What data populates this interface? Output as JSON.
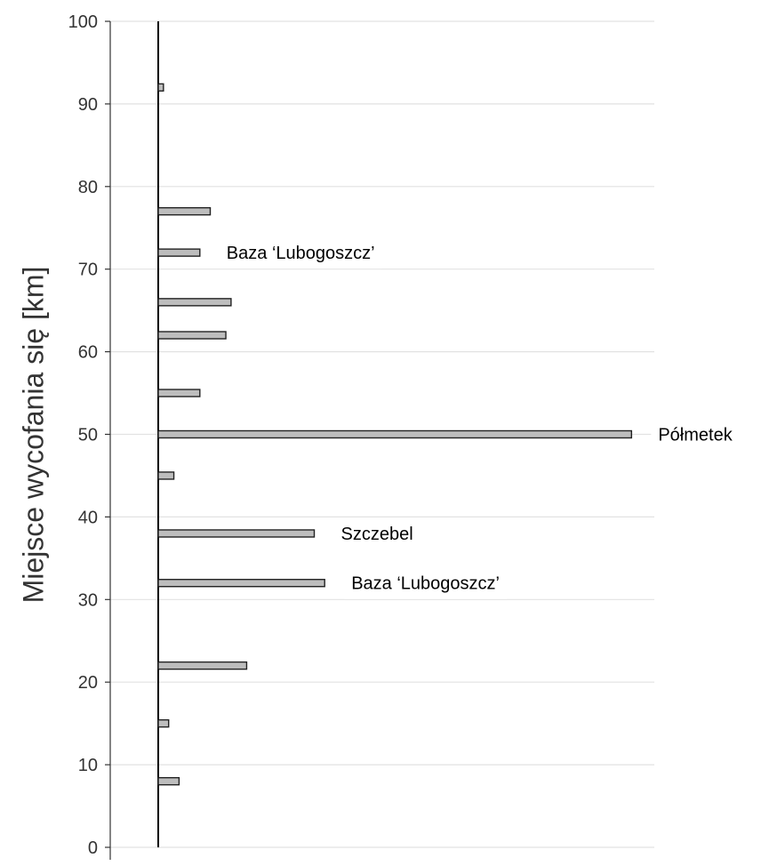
{
  "chart_data": {
    "type": "bar",
    "orientation": "horizontal",
    "title": "",
    "xlabel": "",
    "ylabel": "Miejsce wycofania się [km]",
    "ylim": [
      0,
      100
    ],
    "yticks": [
      0,
      10,
      20,
      30,
      40,
      50,
      60,
      70,
      80,
      90,
      100
    ],
    "grid": "horizontal",
    "bar_color": "#bdbdbd",
    "series": [
      {
        "y": [
          8,
          15,
          22,
          32,
          38,
          45,
          50,
          55,
          62,
          66,
          72,
          77,
          92
        ],
        "values": [
          2,
          1,
          8.5,
          16,
          15,
          1.5,
          45.5,
          4,
          6.5,
          7,
          4,
          5,
          0.5
        ]
      }
    ],
    "annotations": [
      {
        "text": "Baza ‘Lubogoszcz’",
        "y": 72
      },
      {
        "text": "Półmetek",
        "y": 50
      },
      {
        "text": "Szczebel",
        "y": 38
      },
      {
        "text": "Baza ‘Lubogoszcz’",
        "y": 32
      }
    ]
  }
}
